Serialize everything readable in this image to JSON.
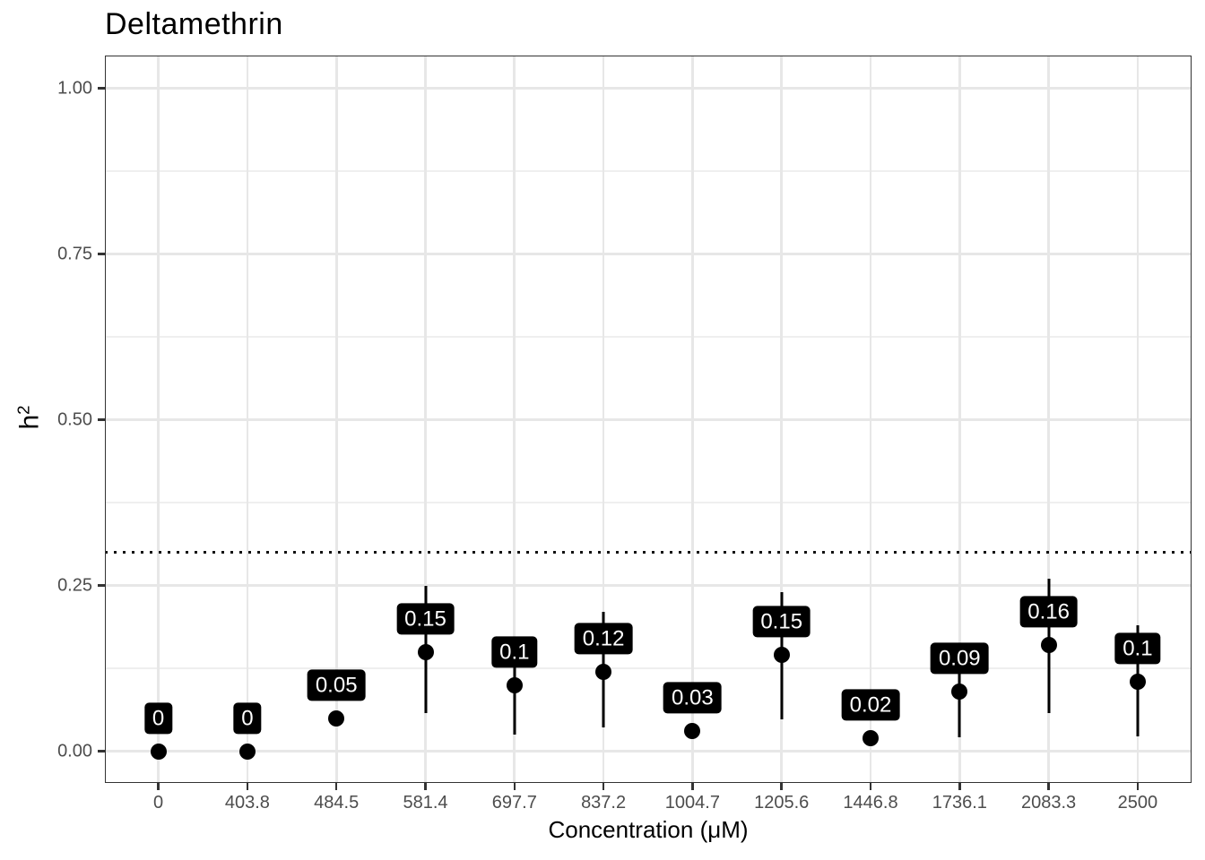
{
  "chart_data": {
    "type": "scatter",
    "title": "Deltamethrin",
    "xlabel": "Concentration (μM)",
    "ylabel_base": "h",
    "ylabel_sup": "2",
    "ylabel_text": "h²",
    "grid": true,
    "legend": "none",
    "ylim": [
      -0.05,
      1.05
    ],
    "y_axis": {
      "ticks": [
        {
          "label": "1.00",
          "value": 1.0
        },
        {
          "label": "0.75",
          "value": 0.75
        },
        {
          "label": "0.50",
          "value": 0.5
        },
        {
          "label": "0.25",
          "value": 0.25
        },
        {
          "label": "0.00",
          "value": 0.0
        }
      ]
    },
    "x_axis": {
      "categories": [
        "0",
        "403.8",
        "484.5",
        "581.4",
        "697.7",
        "837.2",
        "1004.7",
        "1205.6",
        "1446.8",
        "1736.1",
        "2083.3",
        "2500"
      ]
    },
    "reference_line": {
      "y": 0.3,
      "style": "dotted",
      "color": "#111111"
    },
    "points": [
      {
        "category": "0",
        "value": 0.0,
        "label": "0",
        "lower": 0.0,
        "upper": 0.0
      },
      {
        "category": "403.8",
        "value": 0.0,
        "label": "0",
        "lower": 0.0,
        "upper": 0.0
      },
      {
        "category": "484.5",
        "value": 0.05,
        "label": "0.05",
        "lower": 0.05,
        "upper": 0.05
      },
      {
        "category": "581.4",
        "value": 0.15,
        "label": "0.15",
        "lower": 0.057,
        "upper": 0.25
      },
      {
        "category": "697.7",
        "value": 0.1,
        "label": "0.1",
        "lower": 0.025,
        "upper": 0.15
      },
      {
        "category": "837.2",
        "value": 0.12,
        "label": "0.12",
        "lower": 0.036,
        "upper": 0.21
      },
      {
        "category": "1004.7",
        "value": 0.03,
        "label": "0.03",
        "lower": 0.03,
        "upper": 0.03
      },
      {
        "category": "1205.6",
        "value": 0.145,
        "label": "0.15",
        "lower": 0.048,
        "upper": 0.24
      },
      {
        "category": "1446.8",
        "value": 0.02,
        "label": "0.02",
        "lower": 0.02,
        "upper": 0.02
      },
      {
        "category": "1736.1",
        "value": 0.09,
        "label": "0.09",
        "lower": 0.021,
        "upper": 0.14
      },
      {
        "category": "2083.3",
        "value": 0.16,
        "label": "0.16",
        "lower": 0.058,
        "upper": 0.26
      },
      {
        "category": "2500",
        "value": 0.105,
        "label": "0.1",
        "lower": 0.022,
        "upper": 0.19
      }
    ],
    "colors": {
      "point": "#000000",
      "errorbar": "#000000",
      "label_fill": "#000000",
      "label_text": "#ffffff",
      "grid_major": "#e7e7e7",
      "grid_minor": "#efefef",
      "panel_border": "#333333",
      "tick_text": "#4d4d4d",
      "title_text": "#000000"
    }
  }
}
